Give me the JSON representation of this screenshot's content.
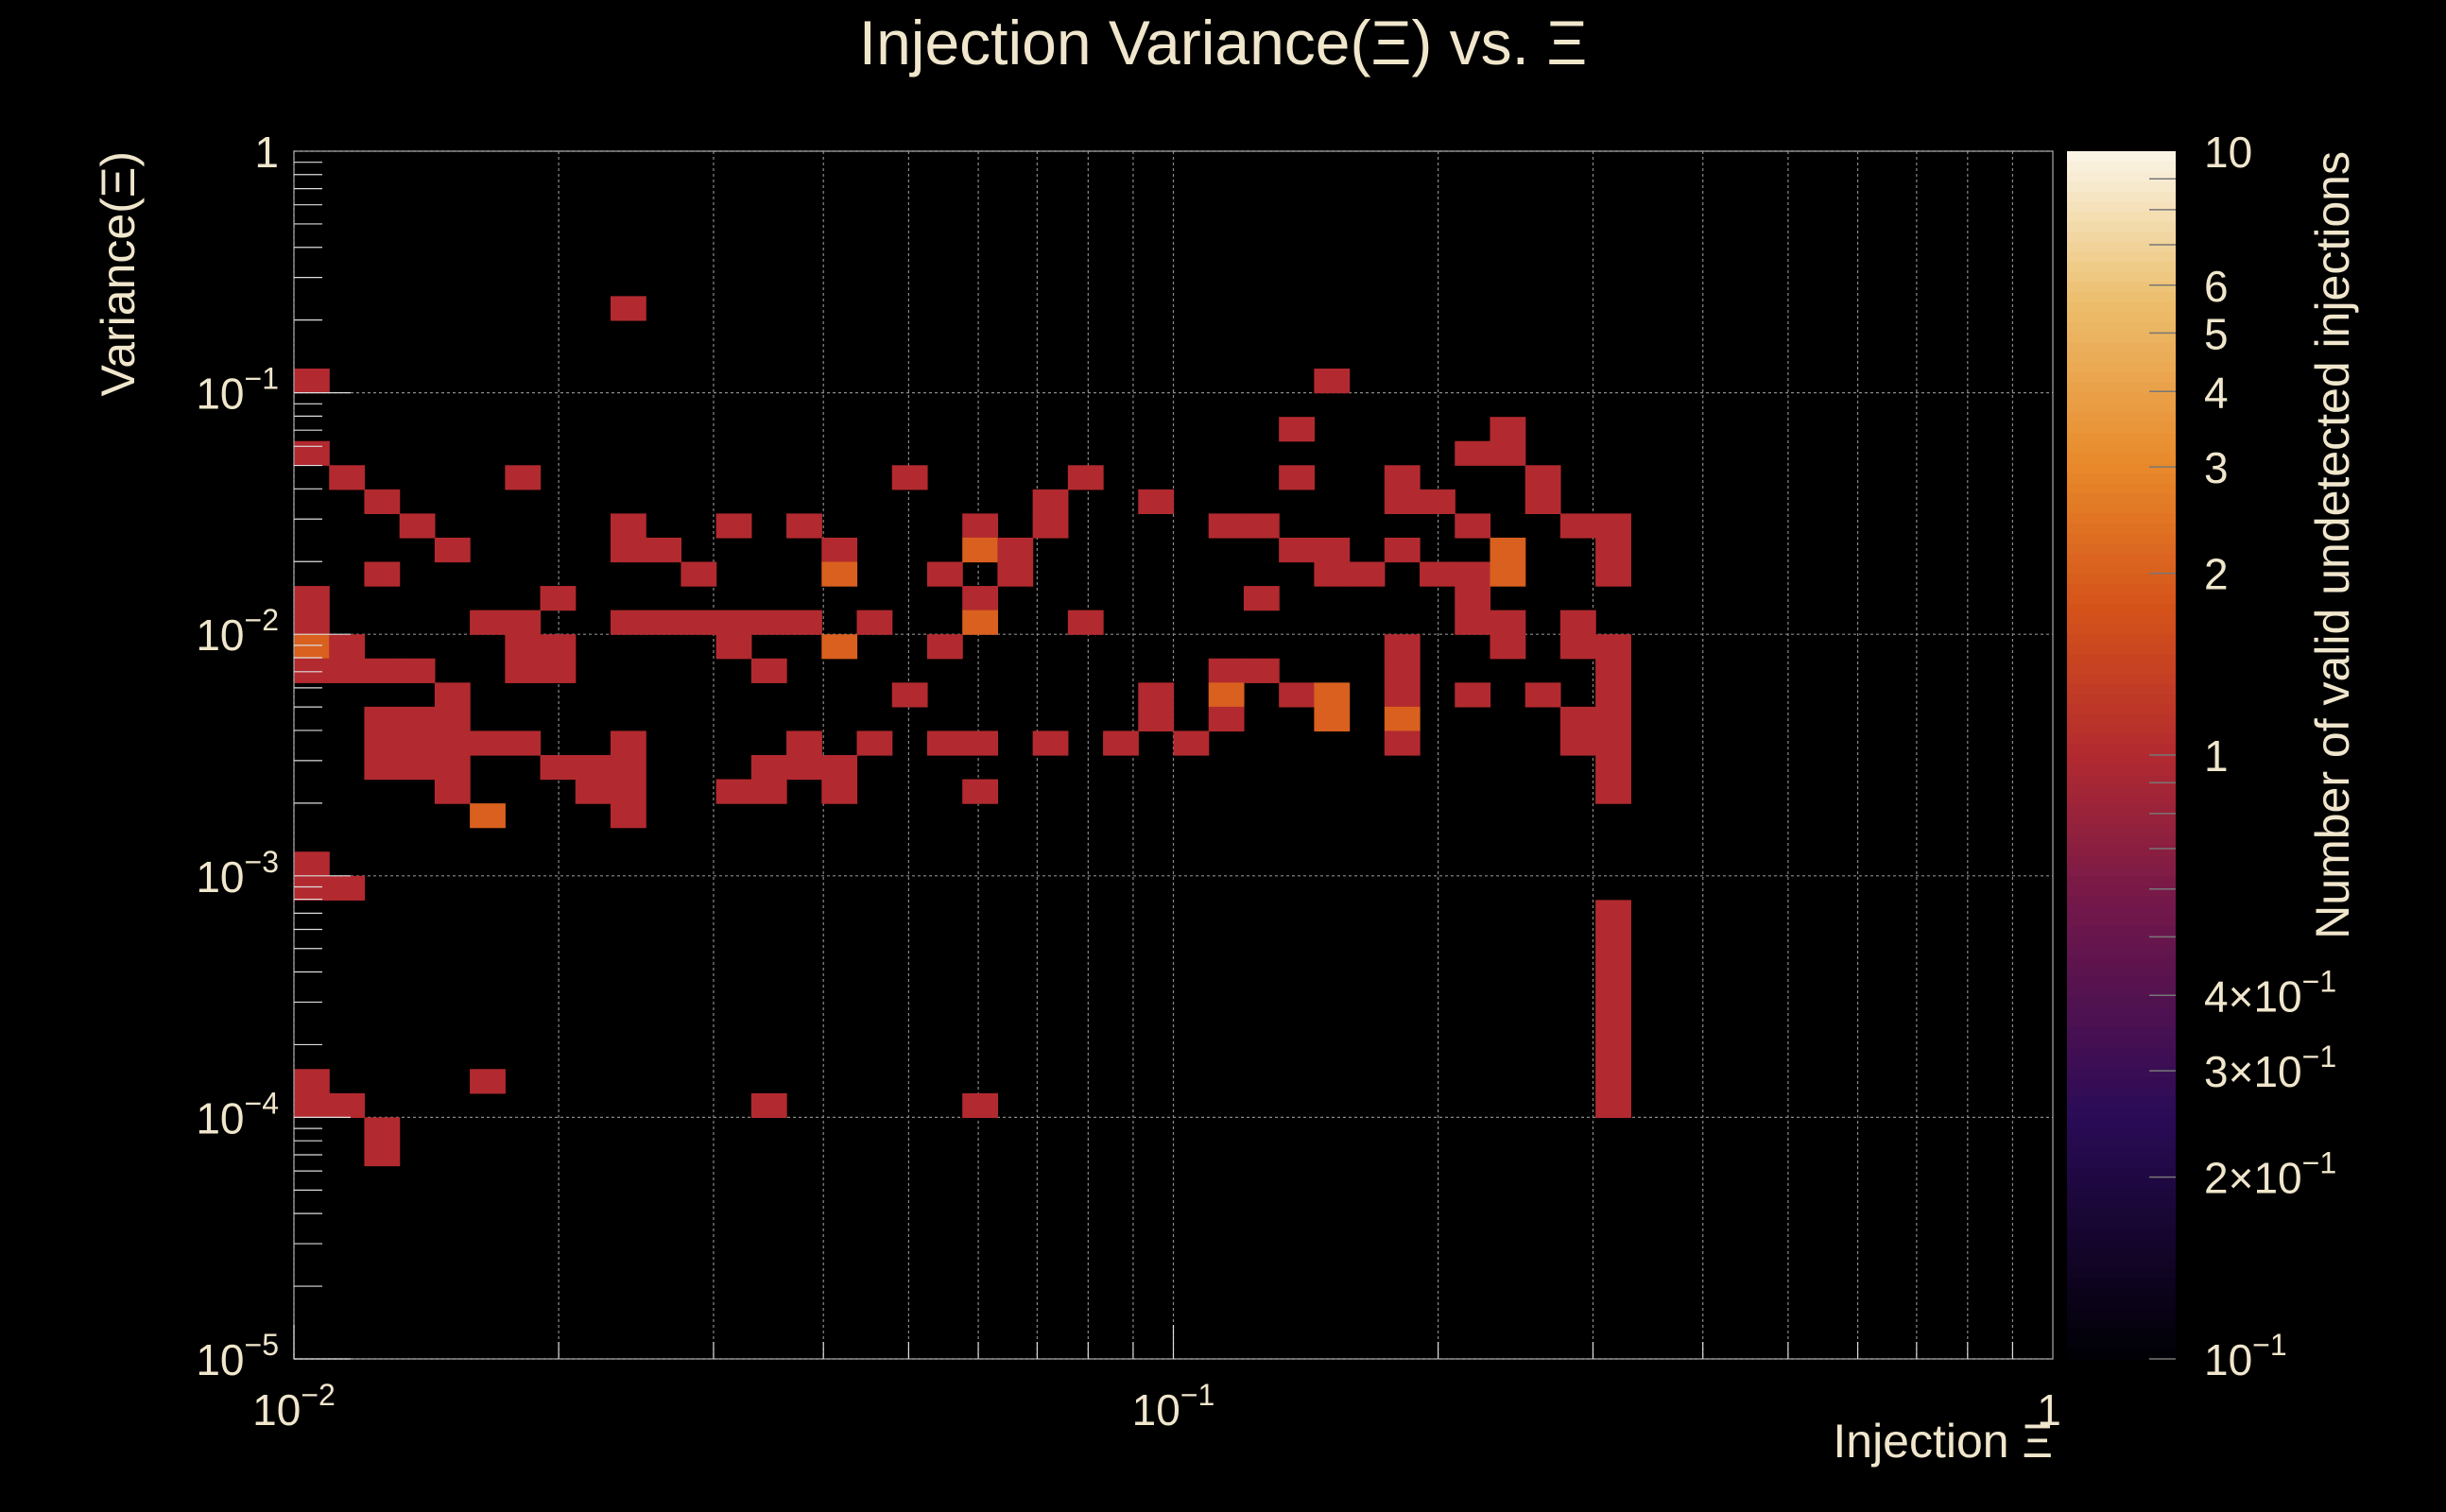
{
  "chart_data": {
    "type": "heatmap",
    "title": "Injection Variance(Ξ) vs. Ξ",
    "xlabel": "Injection Ξ",
    "ylabel": "Variance(Ξ)",
    "zlabel": "Number of valid undetected injections",
    "x_scale": "log",
    "y_scale": "log",
    "z_scale": "log",
    "xlim": [
      0.01,
      1
    ],
    "ylim": [
      1e-05,
      1
    ],
    "zlim": [
      0.1,
      10
    ],
    "grid": true,
    "background": "#000000",
    "text_color": "#f0e6cc",
    "x_ticks": [
      {
        "value": 0.01,
        "base": "10",
        "exp": "−2"
      },
      {
        "value": 0.1,
        "base": "10",
        "exp": "−1"
      },
      {
        "value": 1,
        "base": "1",
        "exp": ""
      }
    ],
    "y_ticks": [
      {
        "value": 1,
        "base": "1",
        "exp": ""
      },
      {
        "value": 0.1,
        "base": "10",
        "exp": "−1"
      },
      {
        "value": 0.01,
        "base": "10",
        "exp": "−2"
      },
      {
        "value": 0.001,
        "base": "10",
        "exp": "−3"
      },
      {
        "value": 0.0001,
        "base": "10",
        "exp": "−4"
      },
      {
        "value": 1e-05,
        "base": "10",
        "exp": "−5"
      }
    ],
    "z_ticks": [
      {
        "value": 10,
        "base": "10",
        "exp": ""
      },
      {
        "value": 6,
        "base": "6",
        "exp": ""
      },
      {
        "value": 5,
        "base": "5",
        "exp": ""
      },
      {
        "value": 4,
        "base": "4",
        "exp": ""
      },
      {
        "value": 3,
        "base": "3",
        "exp": ""
      },
      {
        "value": 2,
        "base": "2",
        "exp": ""
      },
      {
        "value": 1,
        "base": "1",
        "exp": ""
      },
      {
        "value": 0.4,
        "base": "4×10",
        "exp": "−1"
      },
      {
        "value": 0.3,
        "base": "3×10",
        "exp": "−1"
      },
      {
        "value": 0.2,
        "base": "2×10",
        "exp": "−1"
      },
      {
        "value": 0.1,
        "base": "10",
        "exp": "−1"
      }
    ],
    "bins": {
      "nx": 50,
      "ny": 50,
      "x_range": [
        0.01,
        1
      ],
      "y_range": [
        1e-05,
        1
      ]
    },
    "colormap": [
      {
        "t": 0.0,
        "color": "#000004"
      },
      {
        "t": 0.2,
        "color": "#2a0b57"
      },
      {
        "t": 0.38,
        "color": "#74184a"
      },
      {
        "t": 0.5,
        "color": "#b22a2f"
      },
      {
        "t": 0.62,
        "color": "#d4521a"
      },
      {
        "t": 0.74,
        "color": "#e8892a"
      },
      {
        "t": 0.88,
        "color": "#ecc070"
      },
      {
        "t": 1.0,
        "color": "#fbf6e9"
      }
    ],
    "cells": [
      [
        0,
        40,
        1
      ],
      [
        0,
        37,
        1
      ],
      [
        0,
        31,
        1
      ],
      [
        0,
        30,
        1
      ],
      [
        0,
        29,
        2
      ],
      [
        0,
        28,
        1
      ],
      [
        0,
        20,
        1
      ],
      [
        0,
        19,
        1
      ],
      [
        0,
        11,
        1
      ],
      [
        0,
        10,
        1
      ],
      [
        1,
        36,
        1
      ],
      [
        1,
        29,
        1
      ],
      [
        1,
        28,
        1
      ],
      [
        1,
        19,
        1
      ],
      [
        1,
        10,
        1
      ],
      [
        2,
        35,
        1
      ],
      [
        2,
        32,
        1
      ],
      [
        2,
        28,
        1
      ],
      [
        2,
        26,
        1
      ],
      [
        2,
        25,
        1
      ],
      [
        2,
        24,
        1
      ],
      [
        2,
        9,
        1
      ],
      [
        2,
        8,
        1
      ],
      [
        3,
        34,
        1
      ],
      [
        3,
        28,
        1
      ],
      [
        3,
        26,
        1
      ],
      [
        3,
        25,
        1
      ],
      [
        3,
        24,
        1
      ],
      [
        4,
        33,
        1
      ],
      [
        4,
        27,
        1
      ],
      [
        4,
        26,
        1
      ],
      [
        4,
        25,
        1
      ],
      [
        4,
        24,
        1
      ],
      [
        4,
        23,
        1
      ],
      [
        5,
        30,
        1
      ],
      [
        5,
        25,
        1
      ],
      [
        5,
        22,
        2
      ],
      [
        5,
        11,
        1
      ],
      [
        6,
        36,
        1
      ],
      [
        6,
        30,
        1
      ],
      [
        6,
        29,
        1
      ],
      [
        6,
        28,
        1
      ],
      [
        6,
        25,
        1
      ],
      [
        7,
        31,
        1
      ],
      [
        7,
        29,
        1
      ],
      [
        7,
        28,
        1
      ],
      [
        7,
        24,
        1
      ],
      [
        8,
        24,
        1
      ],
      [
        8,
        23,
        1
      ],
      [
        9,
        43,
        1
      ],
      [
        9,
        34,
        1
      ],
      [
        9,
        33,
        1
      ],
      [
        9,
        30,
        1
      ],
      [
        9,
        25,
        1
      ],
      [
        9,
        24,
        1
      ],
      [
        9,
        23,
        1
      ],
      [
        9,
        22,
        1
      ],
      [
        10,
        33,
        1
      ],
      [
        10,
        30,
        1
      ],
      [
        11,
        32,
        1
      ],
      [
        11,
        30,
        1
      ],
      [
        12,
        34,
        1
      ],
      [
        12,
        30,
        1
      ],
      [
        12,
        29,
        1
      ],
      [
        12,
        23,
        1
      ],
      [
        13,
        30,
        1
      ],
      [
        13,
        28,
        1
      ],
      [
        13,
        24,
        1
      ],
      [
        13,
        23,
        1
      ],
      [
        13,
        10,
        1
      ],
      [
        14,
        34,
        1
      ],
      [
        14,
        30,
        1
      ],
      [
        14,
        25,
        1
      ],
      [
        14,
        24,
        1
      ],
      [
        15,
        33,
        1
      ],
      [
        15,
        32,
        2
      ],
      [
        15,
        29,
        2
      ],
      [
        15,
        24,
        1
      ],
      [
        15,
        23,
        1
      ],
      [
        16,
        30,
        1
      ],
      [
        16,
        25,
        1
      ],
      [
        17,
        36,
        1
      ],
      [
        17,
        27,
        1
      ],
      [
        18,
        32,
        1
      ],
      [
        18,
        29,
        1
      ],
      [
        18,
        25,
        1
      ],
      [
        19,
        34,
        1
      ],
      [
        19,
        33,
        2
      ],
      [
        19,
        31,
        1
      ],
      [
        19,
        30,
        2
      ],
      [
        19,
        25,
        1
      ],
      [
        19,
        23,
        1
      ],
      [
        19,
        10,
        1
      ],
      [
        20,
        33,
        1
      ],
      [
        20,
        32,
        1
      ],
      [
        21,
        35,
        1
      ],
      [
        21,
        34,
        1
      ],
      [
        21,
        25,
        1
      ],
      [
        22,
        36,
        1
      ],
      [
        22,
        30,
        1
      ],
      [
        23,
        25,
        1
      ],
      [
        24,
        35,
        1
      ],
      [
        24,
        27,
        1
      ],
      [
        24,
        26,
        1
      ],
      [
        25,
        25,
        1
      ],
      [
        26,
        34,
        1
      ],
      [
        26,
        28,
        1
      ],
      [
        26,
        27,
        2
      ],
      [
        26,
        26,
        1
      ],
      [
        27,
        34,
        1
      ],
      [
        27,
        31,
        1
      ],
      [
        27,
        28,
        1
      ],
      [
        28,
        38,
        1
      ],
      [
        28,
        36,
        1
      ],
      [
        28,
        33,
        1
      ],
      [
        28,
        27,
        1
      ],
      [
        29,
        40,
        1
      ],
      [
        29,
        33,
        1
      ],
      [
        29,
        32,
        1
      ],
      [
        29,
        27,
        2
      ],
      [
        29,
        26,
        2
      ],
      [
        30,
        32,
        1
      ],
      [
        31,
        36,
        1
      ],
      [
        31,
        35,
        1
      ],
      [
        31,
        33,
        1
      ],
      [
        31,
        29,
        1
      ],
      [
        31,
        28,
        1
      ],
      [
        31,
        27,
        1
      ],
      [
        31,
        26,
        2
      ],
      [
        31,
        25,
        1
      ],
      [
        32,
        35,
        1
      ],
      [
        32,
        32,
        1
      ],
      [
        33,
        37,
        1
      ],
      [
        33,
        34,
        1
      ],
      [
        33,
        32,
        1
      ],
      [
        33,
        31,
        1
      ],
      [
        33,
        30,
        1
      ],
      [
        33,
        27,
        1
      ],
      [
        34,
        38,
        1
      ],
      [
        34,
        37,
        1
      ],
      [
        34,
        33,
        2
      ],
      [
        34,
        32,
        2
      ],
      [
        34,
        30,
        1
      ],
      [
        34,
        29,
        1
      ],
      [
        35,
        36,
        1
      ],
      [
        35,
        35,
        1
      ],
      [
        35,
        27,
        1
      ],
      [
        36,
        34,
        1
      ],
      [
        36,
        30,
        1
      ],
      [
        36,
        29,
        1
      ],
      [
        36,
        26,
        1
      ],
      [
        36,
        25,
        1
      ],
      [
        37,
        34,
        1
      ],
      [
        37,
        33,
        1
      ],
      [
        37,
        32,
        1
      ],
      [
        37,
        29,
        1
      ],
      [
        37,
        28,
        1
      ],
      [
        37,
        27,
        1
      ],
      [
        37,
        26,
        1
      ],
      [
        37,
        25,
        1
      ],
      [
        37,
        24,
        1
      ],
      [
        37,
        23,
        1
      ],
      [
        37,
        18,
        1
      ],
      [
        37,
        17,
        1
      ],
      [
        37,
        16,
        1
      ],
      [
        37,
        15,
        1
      ],
      [
        37,
        14,
        1
      ],
      [
        37,
        13,
        1
      ],
      [
        37,
        12,
        1
      ],
      [
        37,
        11,
        1
      ],
      [
        37,
        10,
        1
      ]
    ]
  }
}
